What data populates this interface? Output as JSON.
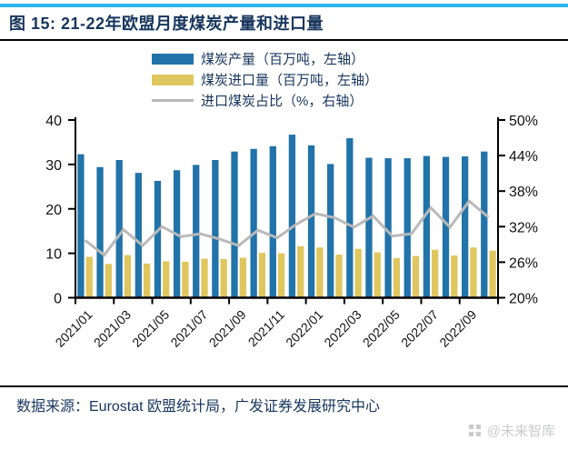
{
  "header": {
    "title": "图 15: 21-22年欧盟月度煤炭产量和进口量"
  },
  "footer": {
    "source": "数据来源：Eurostat 欧盟统计局，广发证券发展研究中心",
    "watermark": "@未来智库"
  },
  "colors": {
    "accent_rule": "#2EB6E8",
    "title_text": "#17365D",
    "production_bar": "#2173A9",
    "import_bar": "#DFC65F",
    "share_line": "#B9B9B9",
    "axis": "#000000",
    "watermark": "#C9CBCE"
  },
  "chart_data": {
    "type": "bar",
    "subtype": "bar-line-combo",
    "categories": [
      "2021/01",
      "2021/02",
      "2021/03",
      "2021/04",
      "2021/05",
      "2021/06",
      "2021/07",
      "2021/08",
      "2021/09",
      "2021/10",
      "2021/11",
      "2021/12",
      "2022/01",
      "2022/02",
      "2022/03",
      "2022/04",
      "2022/05",
      "2022/06",
      "2022/07",
      "2022/08",
      "2022/09",
      "2022/10"
    ],
    "series": [
      {
        "name": "煤炭产量（百万吨，左轴）",
        "type": "bar",
        "axis": "left",
        "color": "#2173A9",
        "values": [
          32.3,
          29.4,
          31.0,
          28.1,
          26.3,
          28.7,
          29.9,
          31.0,
          32.9,
          33.5,
          34.1,
          36.7,
          34.3,
          30.1,
          35.9,
          31.5,
          31.4,
          31.4,
          31.9,
          31.7,
          31.8,
          32.9
        ]
      },
      {
        "name": "煤炭进口量（百万吨，左轴）",
        "type": "bar",
        "axis": "left",
        "color": "#DFC65F",
        "values": [
          9.2,
          7.6,
          9.6,
          7.7,
          8.2,
          8.1,
          8.8,
          8.7,
          9.0,
          10.1,
          10.0,
          11.6,
          11.3,
          9.7,
          11.0,
          10.2,
          8.9,
          9.4,
          10.8,
          9.5,
          11.3,
          10.6
        ]
      },
      {
        "name": "进口煤炭占比（%，右轴）",
        "type": "line",
        "axis": "right",
        "color": "#B9B9B9",
        "values": [
          29.7,
          27.2,
          31.5,
          28.8,
          32.0,
          30.3,
          30.8,
          29.9,
          28.8,
          31.4,
          30.1,
          32.4,
          34.2,
          33.5,
          31.9,
          33.8,
          30.4,
          30.8,
          35.2,
          31.9,
          36.3,
          33.6
        ]
      }
    ],
    "left_axis": {
      "min": 0,
      "max": 40,
      "ticks": [
        0,
        10,
        20,
        30,
        40
      ]
    },
    "right_axis": {
      "min": 20,
      "max": 50,
      "ticks": [
        20,
        26,
        32,
        38,
        44,
        50
      ],
      "tick_labels": [
        "20%",
        "26%",
        "32%",
        "38%",
        "44%",
        "50%"
      ]
    },
    "x_tick_labels": [
      "2021/01",
      "2021/03",
      "2021/05",
      "2021/07",
      "2021/09",
      "2021/11",
      "2022/01",
      "2022/03",
      "2022/05",
      "2022/07",
      "2022/09"
    ],
    "grid": false,
    "legend_position": "top-center"
  }
}
